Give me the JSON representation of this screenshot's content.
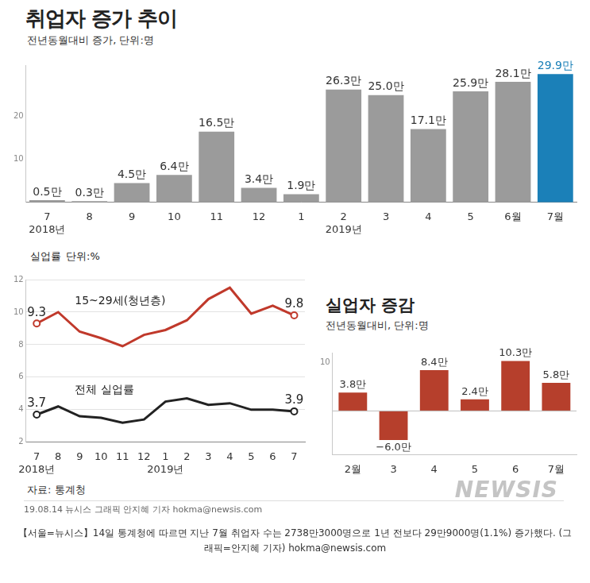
{
  "chart_data": [
    {
      "type": "bar",
      "title": "취업자 증가 추이",
      "subtitle": "전년동월대비 증가, 단위:명",
      "categories": [
        [
          "7",
          "2018년"
        ],
        "8",
        "9",
        "10",
        "11",
        "12",
        "1",
        [
          "2",
          "2019년"
        ],
        "3",
        "4",
        "5",
        "6월",
        "7월"
      ],
      "values": [
        0.5,
        0.3,
        4.5,
        6.4,
        16.5,
        3.4,
        1.9,
        26.3,
        25.0,
        17.1,
        25.9,
        28.1,
        29.9
      ],
      "value_labels": [
        "0.5만",
        "0.3만",
        "4.5만",
        "6.4만",
        "16.5만",
        "3.4만",
        "1.9만",
        "26.3만",
        "25.0만",
        "17.1만",
        "25.9만",
        "28.1만",
        "29.9만"
      ],
      "colors": [
        "#9b9b9b",
        "#9b9b9b",
        "#9b9b9b",
        "#9b9b9b",
        "#9b9b9b",
        "#9b9b9b",
        "#9b9b9b",
        "#9b9b9b",
        "#9b9b9b",
        "#9b9b9b",
        "#9b9b9b",
        "#9b9b9b",
        "#1b80b8"
      ],
      "ylim": [
        0,
        32
      ],
      "yticks": [
        10,
        20
      ],
      "grid": false,
      "data_labels": true
    },
    {
      "type": "line",
      "title": "실업률",
      "subtitle": "단위:%",
      "categories": [
        [
          "7",
          "2018년"
        ],
        "8",
        "9",
        "10",
        "11",
        "12",
        [
          "1",
          "2019년"
        ],
        "2",
        "3",
        "4",
        "5",
        "6",
        "7"
      ],
      "series": [
        {
          "name": "15~29세(청년층)",
          "color": "#c0392b",
          "marker": "circle",
          "values": [
            9.3,
            10.0,
            8.8,
            8.4,
            7.9,
            8.6,
            8.9,
            9.5,
            10.8,
            11.5,
            9.9,
            10.4,
            9.8
          ],
          "value_labels": [
            "9.3",
            null,
            null,
            null,
            null,
            null,
            null,
            null,
            null,
            null,
            null,
            null,
            "9.8"
          ]
        },
        {
          "name": "전체 실업률",
          "color": "#222222",
          "marker": "circle",
          "values": [
            3.7,
            4.2,
            3.6,
            3.5,
            3.2,
            3.4,
            4.5,
            4.7,
            4.3,
            4.4,
            4.0,
            4.0,
            3.9
          ],
          "value_labels": [
            "3.7",
            null,
            null,
            null,
            null,
            null,
            null,
            null,
            null,
            null,
            null,
            null,
            "3.9"
          ]
        }
      ],
      "ylim": [
        2,
        12
      ],
      "yticks": [
        2,
        4,
        6,
        8,
        10,
        12
      ],
      "grid": true
    },
    {
      "type": "bar",
      "title": "실업자 증감",
      "subtitle": "전년동월대비, 단위:명",
      "categories": [
        "2월",
        "3",
        "4",
        "5",
        "6",
        "7월"
      ],
      "values": [
        3.8,
        -6.0,
        8.4,
        2.4,
        10.3,
        5.8
      ],
      "value_labels": [
        "3.8만",
        "−6.0만",
        "8.4만",
        "2.4만",
        "10.3만",
        "5.8만"
      ],
      "color": "#b63f2c",
      "ylim": [
        -9,
        12
      ],
      "yticks": [
        10
      ],
      "grid": false,
      "data_labels": true
    }
  ],
  "footer": {
    "source": "자료: 통계청",
    "watermark": "NEWSIS",
    "credit": "19.08.14 뉴시스 그래픽 안지혜 기자 hokma@newsis.com",
    "caption": "【서울=뉴시스】14일 통계청에 따르면 지난 7월 취업자 수는 2738만3000명으로 1년 전보다 29만9000명(1.1%) 증가했다. (그래픽=안지혜 기자) hokma@newsis.com"
  }
}
